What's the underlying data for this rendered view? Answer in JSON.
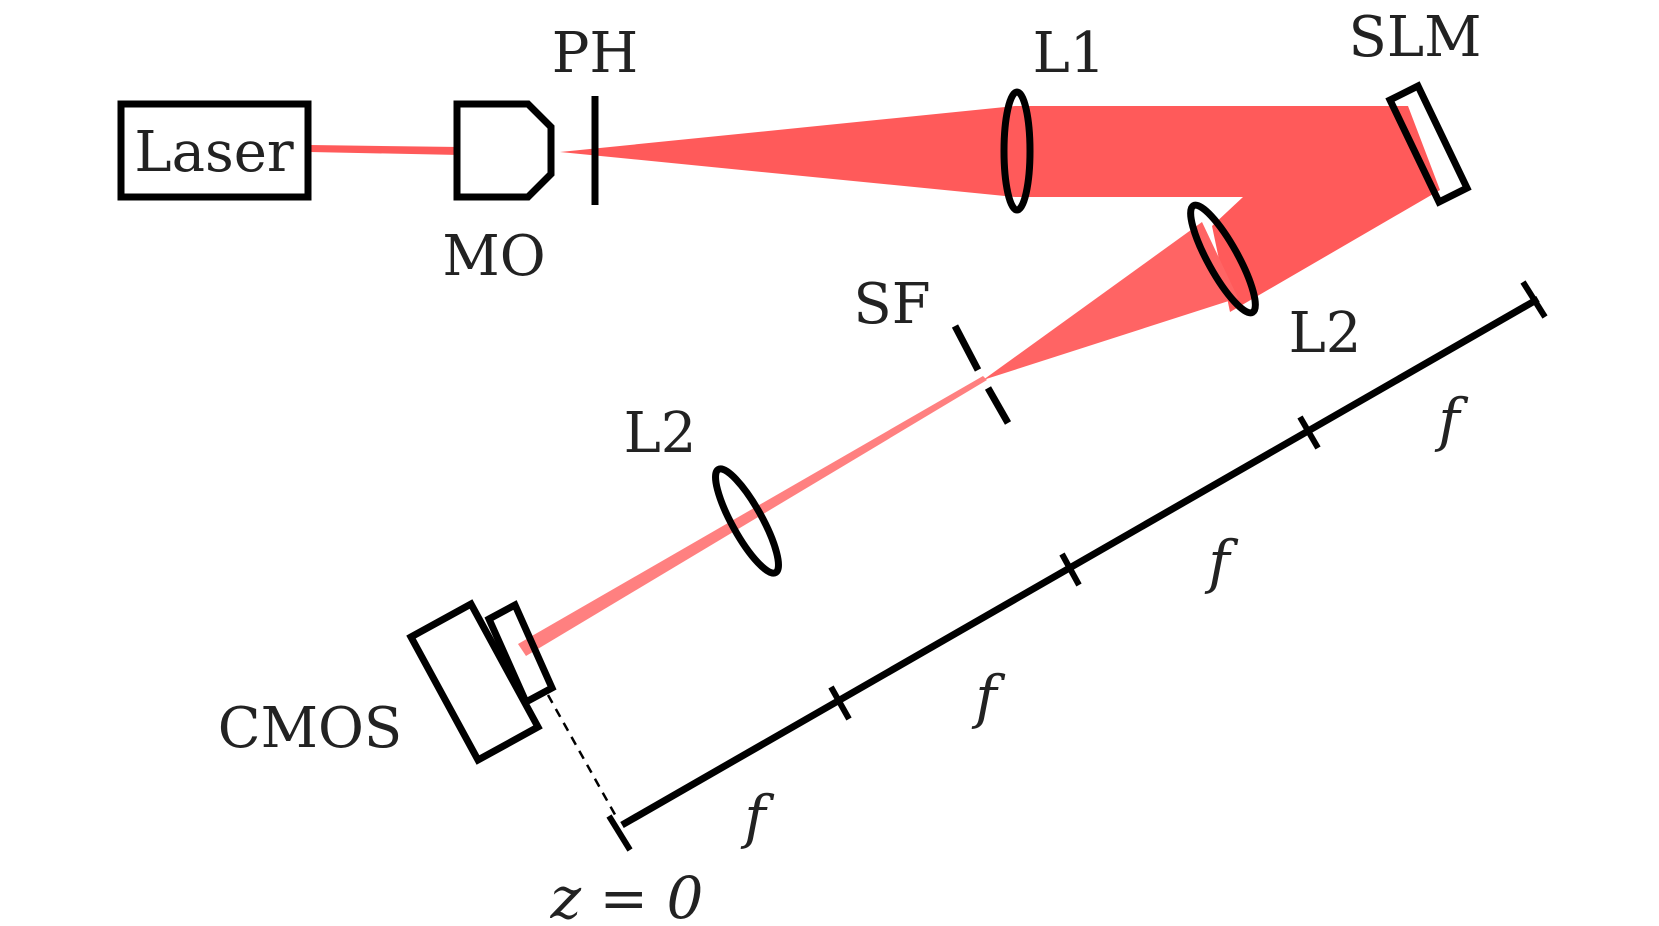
{
  "labels": {
    "laser": "Laser",
    "mo": "MO",
    "ph": "PH",
    "l1": "L1",
    "slm": "SLM",
    "l2_upper": "L2",
    "sf": "SF",
    "l2_lower": "L2",
    "cmos": "CMOS",
    "z0": "z = 0"
  },
  "distances": {
    "seg1": "f",
    "seg2": "f",
    "seg3": "f",
    "seg4": "f"
  },
  "colors": {
    "beam_main": "#ff5a5a",
    "beam_mid": "#ff6464",
    "beam_light": "#ff8080",
    "stroke": "#000000"
  }
}
